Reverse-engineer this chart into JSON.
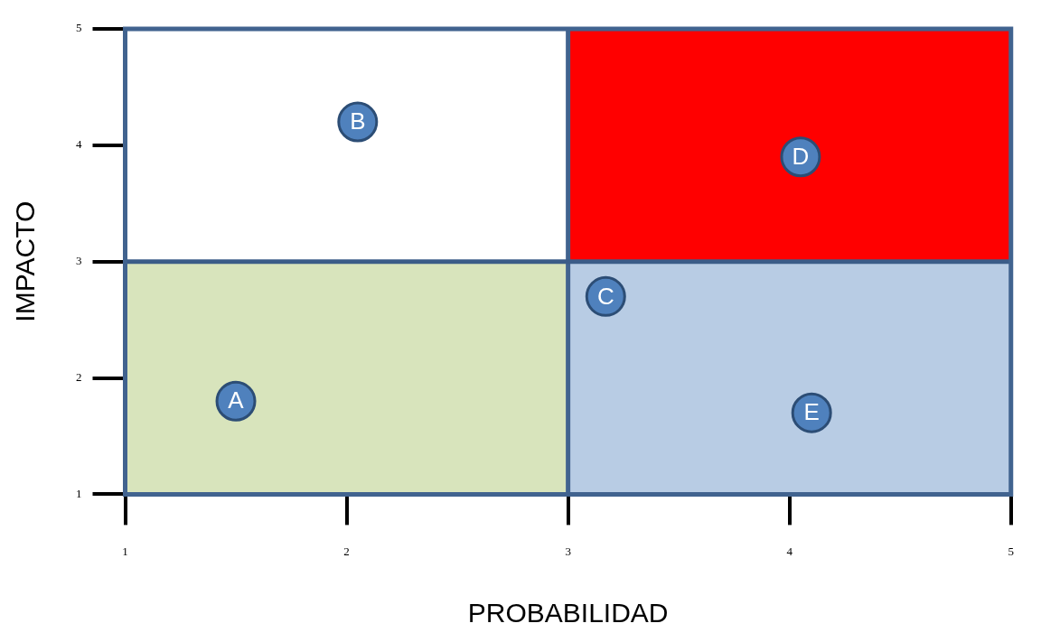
{
  "chart_data": {
    "type": "scatter",
    "xlabel": "PROBABILIDAD",
    "ylabel": "IMPACTO",
    "xlim": [
      1,
      5
    ],
    "ylim": [
      1,
      5
    ],
    "xticks": [
      1,
      2,
      3,
      4,
      5
    ],
    "yticks": [
      1,
      2,
      3,
      4,
      5
    ],
    "grid": false,
    "legend": false,
    "marker": "circle",
    "series": [
      {
        "name": "A",
        "color": "#4f81bd",
        "x": [
          1.5
        ],
        "values": [
          1.8
        ]
      },
      {
        "name": "B",
        "color": "#4f81bd",
        "x": [
          2.05
        ],
        "values": [
          4.2
        ]
      },
      {
        "name": "C",
        "color": "#4f81bd",
        "x": [
          3.17
        ],
        "values": [
          2.7
        ]
      },
      {
        "name": "D",
        "color": "#4f81bd",
        "x": [
          4.05
        ],
        "values": [
          3.9
        ]
      },
      {
        "name": "E",
        "color": "#4f81bd",
        "x": [
          4.1
        ],
        "values": [
          1.7
        ]
      }
    ],
    "ref_lines": [
      {
        "axis": "x",
        "value": 3,
        "color": "#41638f"
      },
      {
        "axis": "y",
        "value": 3,
        "color": "#3b5c88"
      }
    ]
  }
}
